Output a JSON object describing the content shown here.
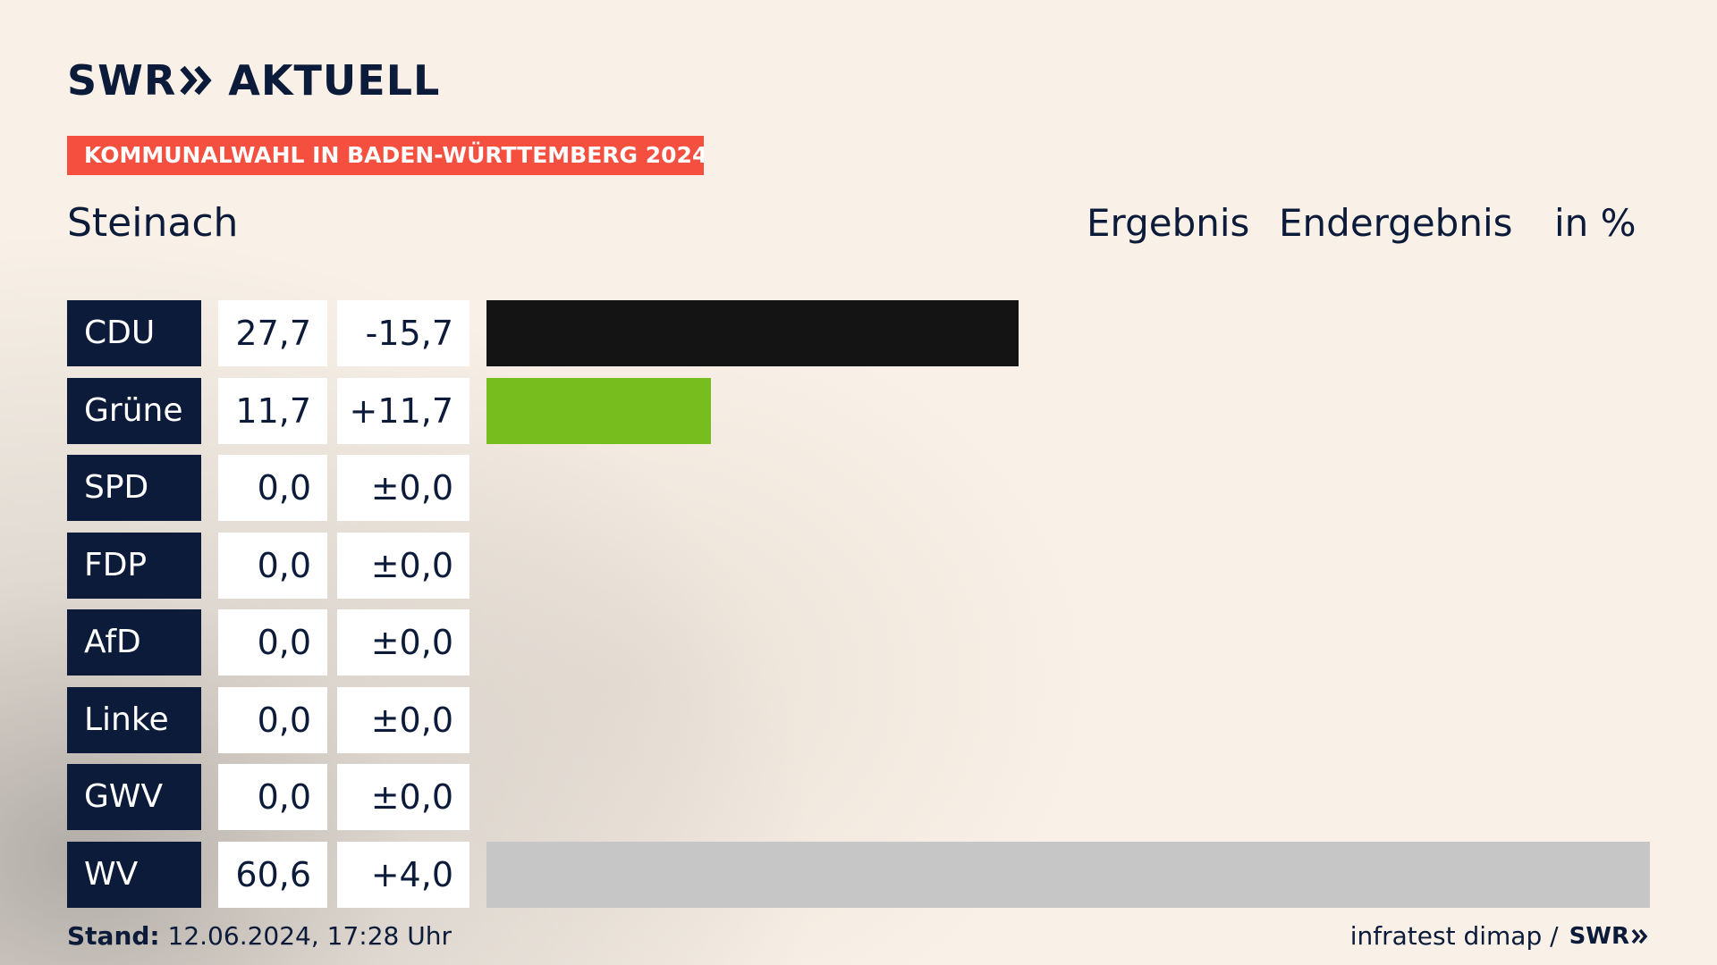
{
  "brand": {
    "logo_left": "SWR",
    "logo_right": "AKTUELL",
    "footer_logo": "SWR"
  },
  "tag": "KOMMUNALWAHL IN BADEN-WÜRTTEMBERG 2024",
  "place": "Steinach",
  "headers": {
    "result": "Ergebnis",
    "status": "Endergebnis",
    "unit": "in %"
  },
  "colors": {
    "navy": "#0c1b3a",
    "tag_red": "#f5503f"
  },
  "chart_data": {
    "type": "bar",
    "categories": [
      "CDU",
      "Grüne",
      "SPD",
      "FDP",
      "AfD",
      "Linke",
      "GWV",
      "WV"
    ],
    "values": [
      27.7,
      11.7,
      0.0,
      0.0,
      0.0,
      0.0,
      0.0,
      60.6
    ],
    "value_labels": [
      "27,7",
      "11,7",
      "0,0",
      "0,0",
      "0,0",
      "0,0",
      "0,0",
      "60,6"
    ],
    "diff_labels": [
      "-15,7",
      "+11,7",
      "±0,0",
      "±0,0",
      "±0,0",
      "±0,0",
      "±0,0",
      "+4,0"
    ],
    "bar_colors": [
      "#141414",
      "#78bd1e",
      "#e3000f",
      "#ffed00",
      "#009ee0",
      "#be3075",
      "#c6c6c6",
      "#c6c6c6"
    ],
    "xlim": [
      0,
      60.6
    ]
  },
  "footer": {
    "stand_label": "Stand:",
    "stand_value": "12.06.2024, 17:28 Uhr",
    "source": "infratest dimap /"
  }
}
